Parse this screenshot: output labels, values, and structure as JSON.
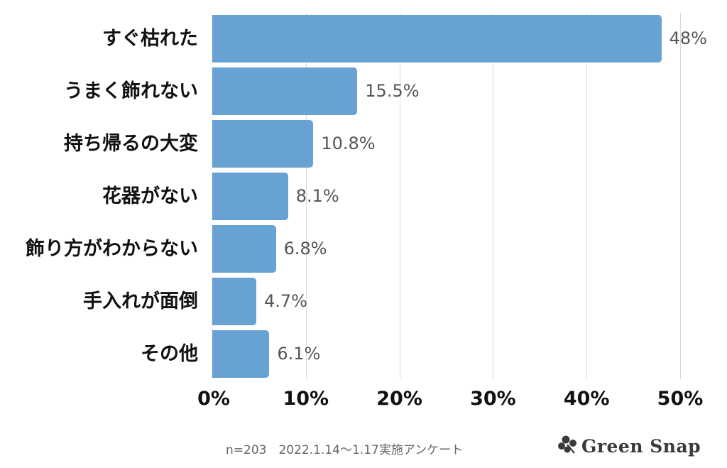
{
  "chart_data": {
    "type": "bar",
    "orientation": "horizontal",
    "title": "",
    "xlabel": "",
    "ylabel": "",
    "categories": [
      "すぐ枯れた",
      "うまく飾れない",
      "持ち帰るの大変",
      "花器がない",
      "飾り方がわからない",
      "手入れが面倒",
      "その他"
    ],
    "values": [
      48,
      15.5,
      10.8,
      8.1,
      6.8,
      4.7,
      6.1
    ],
    "value_labels": [
      "48%",
      "15.5%",
      "10.8%",
      "8.1%",
      "6.8%",
      "4.7%",
      "6.1%"
    ],
    "xlim": [
      0,
      50
    ],
    "x_ticks": [
      "0%",
      "10%",
      "20%",
      "30%",
      "40%",
      "50%"
    ],
    "grid": "vertical",
    "legend": "none",
    "bar_color": "#68a2d2"
  },
  "footer": {
    "note": "n=203　2022.1.14～1.17実施アンケート",
    "brand": "Green Snap"
  },
  "colors": {
    "bar": "#68a2d2",
    "gridline": "#d9d9d9",
    "value_label": "#555555",
    "category_label": "#111111"
  }
}
